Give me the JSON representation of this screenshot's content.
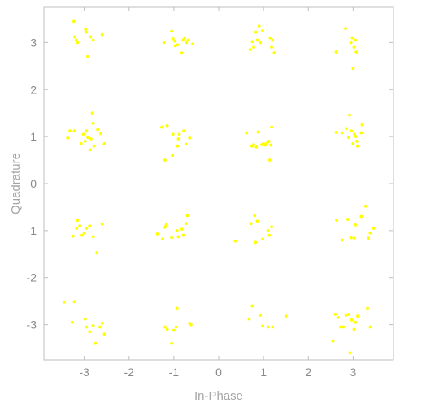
{
  "chart_data": {
    "type": "scatter",
    "title": "",
    "xlabel": "In-Phase",
    "ylabel": "Quadrature",
    "xlim": [
      -3.9,
      3.9
    ],
    "ylim": [
      -3.75,
      3.75
    ],
    "xticks": [
      -3,
      -2,
      -1,
      0,
      1,
      2,
      3
    ],
    "yticks": [
      -3,
      -2,
      -1,
      0,
      1,
      2,
      3
    ],
    "grid": false,
    "legend": "none",
    "colors": {
      "marker": "#ffff00",
      "frame": "#bfbfbf",
      "tick_text": "#8a8a8a",
      "axis_text": "#a6a6a6"
    },
    "series": [
      {
        "points": [
          [
            -3.23,
            3.45
          ],
          [
            -3.21,
            3.12
          ],
          [
            -3.18,
            3.05
          ],
          [
            -3.15,
            3.0
          ],
          [
            -2.97,
            3.28
          ],
          [
            -2.95,
            3.22
          ],
          [
            -2.86,
            3.12
          ],
          [
            -2.8,
            3.05
          ],
          [
            -2.6,
            3.17
          ],
          [
            -2.92,
            2.7
          ],
          [
            -1.22,
            3.0
          ],
          [
            -1.05,
            3.24
          ],
          [
            -1.02,
            3.08
          ],
          [
            -0.98,
            3.03
          ],
          [
            -0.97,
            2.93
          ],
          [
            -0.92,
            2.95
          ],
          [
            -0.8,
            3.05
          ],
          [
            -0.76,
            3.1
          ],
          [
            -0.72,
            3.0
          ],
          [
            -0.68,
            3.05
          ],
          [
            -0.58,
            2.97
          ],
          [
            -0.82,
            2.78
          ],
          [
            0.7,
            2.85
          ],
          [
            0.75,
            3.02
          ],
          [
            0.78,
            2.9
          ],
          [
            0.83,
            3.22
          ],
          [
            0.86,
            3.05
          ],
          [
            0.9,
            3.35
          ],
          [
            0.93,
            3.0
          ],
          [
            0.98,
            3.25
          ],
          [
            1.15,
            3.1
          ],
          [
            1.18,
            2.9
          ],
          [
            1.2,
            3.05
          ],
          [
            1.24,
            2.78
          ],
          [
            2.62,
            2.8
          ],
          [
            2.83,
            3.3
          ],
          [
            2.95,
            3.0
          ],
          [
            2.98,
            3.1
          ],
          [
            3.02,
            2.9
          ],
          [
            3.05,
            3.05
          ],
          [
            3.07,
            2.8
          ],
          [
            3.0,
            2.45
          ],
          [
            -3.37,
            0.97
          ],
          [
            -3.32,
            1.12
          ],
          [
            -3.22,
            1.12
          ],
          [
            -3.07,
            0.85
          ],
          [
            -3.02,
            1.05
          ],
          [
            -2.98,
            0.9
          ],
          [
            -2.95,
            1.12
          ],
          [
            -2.92,
            0.98
          ],
          [
            -2.87,
            0.72
          ],
          [
            -2.85,
            0.95
          ],
          [
            -2.8,
            1.28
          ],
          [
            -2.82,
            1.5
          ],
          [
            -2.78,
            0.8
          ],
          [
            -2.7,
            1.15
          ],
          [
            -2.63,
            1.06
          ],
          [
            -2.55,
            0.85
          ],
          [
            -1.27,
            1.2
          ],
          [
            -1.15,
            1.23
          ],
          [
            -1.02,
            1.05
          ],
          [
            -0.92,
            0.8
          ],
          [
            -0.9,
            0.95
          ],
          [
            -0.88,
            1.05
          ],
          [
            -0.78,
            1.12
          ],
          [
            -0.73,
            0.84
          ],
          [
            -0.65,
            0.97
          ],
          [
            -1.03,
            0.6
          ],
          [
            -1.2,
            0.5
          ],
          [
            0.62,
            1.08
          ],
          [
            0.74,
            0.8
          ],
          [
            0.78,
            0.83
          ],
          [
            0.84,
            0.78
          ],
          [
            0.88,
            1.1
          ],
          [
            0.96,
            0.83
          ],
          [
            1.0,
            0.85
          ],
          [
            1.04,
            0.82
          ],
          [
            1.08,
            0.86
          ],
          [
            1.12,
            0.9
          ],
          [
            1.16,
            0.82
          ],
          [
            1.18,
            1.2
          ],
          [
            1.14,
            0.5
          ],
          [
            2.62,
            1.09
          ],
          [
            2.75,
            1.08
          ],
          [
            2.85,
            1.17
          ],
          [
            2.9,
            0.98
          ],
          [
            2.92,
            1.46
          ],
          [
            2.96,
            1.12
          ],
          [
            3.0,
            0.85
          ],
          [
            3.03,
            1.05
          ],
          [
            3.06,
            1.0
          ],
          [
            3.1,
            0.8
          ],
          [
            3.18,
            1.08
          ],
          [
            3.2,
            1.25
          ],
          [
            3.08,
            0.9
          ],
          [
            -3.25,
            -1.12
          ],
          [
            -3.17,
            -0.95
          ],
          [
            -3.15,
            -0.78
          ],
          [
            -3.1,
            -0.9
          ],
          [
            -3.05,
            -1.1
          ],
          [
            -3.0,
            -1.05
          ],
          [
            -2.95,
            -0.95
          ],
          [
            -2.88,
            -0.9
          ],
          [
            -2.8,
            -1.13
          ],
          [
            -2.6,
            -0.86
          ],
          [
            -2.72,
            -1.47
          ],
          [
            -1.37,
            -1.07
          ],
          [
            -1.25,
            -1.18
          ],
          [
            -1.2,
            -0.93
          ],
          [
            -1.17,
            -0.88
          ],
          [
            -1.05,
            -1.15
          ],
          [
            -0.93,
            -1.0
          ],
          [
            -0.9,
            -1.13
          ],
          [
            -0.82,
            -0.97
          ],
          [
            -0.79,
            -1.1
          ],
          [
            -0.73,
            -0.85
          ],
          [
            -0.7,
            -0.68
          ],
          [
            0.37,
            -1.22
          ],
          [
            0.72,
            -0.85
          ],
          [
            0.8,
            -0.68
          ],
          [
            0.82,
            -1.25
          ],
          [
            0.86,
            -0.8
          ],
          [
            0.98,
            -1.18
          ],
          [
            1.1,
            -1.0
          ],
          [
            1.13,
            -1.1
          ],
          [
            1.18,
            -0.92
          ],
          [
            2.63,
            -0.78
          ],
          [
            2.75,
            -1.2
          ],
          [
            2.88,
            -0.76
          ],
          [
            2.95,
            -1.15
          ],
          [
            3.02,
            -1.16
          ],
          [
            3.05,
            -0.88
          ],
          [
            3.18,
            -0.7
          ],
          [
            3.28,
            -0.48
          ],
          [
            3.34,
            -1.16
          ],
          [
            3.38,
            -1.05
          ],
          [
            3.46,
            -0.95
          ],
          [
            -3.45,
            -2.52
          ],
          [
            -3.27,
            -2.95
          ],
          [
            -3.22,
            -2.51
          ],
          [
            -2.98,
            -2.88
          ],
          [
            -2.95,
            -3.05
          ],
          [
            -2.88,
            -3.15
          ],
          [
            -2.8,
            -3.02
          ],
          [
            -2.75,
            -3.4
          ],
          [
            -2.65,
            -3.05
          ],
          [
            -2.6,
            -2.97
          ],
          [
            -2.55,
            -3.2
          ],
          [
            -1.2,
            -3.05
          ],
          [
            -1.15,
            -3.1
          ],
          [
            -1.05,
            -3.4
          ],
          [
            -1.0,
            -3.12
          ],
          [
            -0.95,
            -3.05
          ],
          [
            -0.93,
            -2.65
          ],
          [
            -0.65,
            -2.97
          ],
          [
            -0.62,
            -3.0
          ],
          [
            0.68,
            -2.88
          ],
          [
            0.75,
            -2.6
          ],
          [
            0.93,
            -2.8
          ],
          [
            0.98,
            -3.03
          ],
          [
            1.1,
            -3.05
          ],
          [
            1.2,
            -3.05
          ],
          [
            1.5,
            -2.82
          ],
          [
            2.55,
            -3.35
          ],
          [
            2.6,
            -2.78
          ],
          [
            2.66,
            -2.85
          ],
          [
            2.72,
            -3.05
          ],
          [
            2.78,
            -3.05
          ],
          [
            2.84,
            -2.8
          ],
          [
            2.9,
            -2.78
          ],
          [
            2.93,
            -3.6
          ],
          [
            2.97,
            -2.9
          ],
          [
            3.02,
            -3.1
          ],
          [
            3.05,
            -2.95
          ],
          [
            3.1,
            -2.82
          ],
          [
            3.32,
            -2.65
          ],
          [
            3.38,
            -3.05
          ]
        ]
      }
    ]
  }
}
